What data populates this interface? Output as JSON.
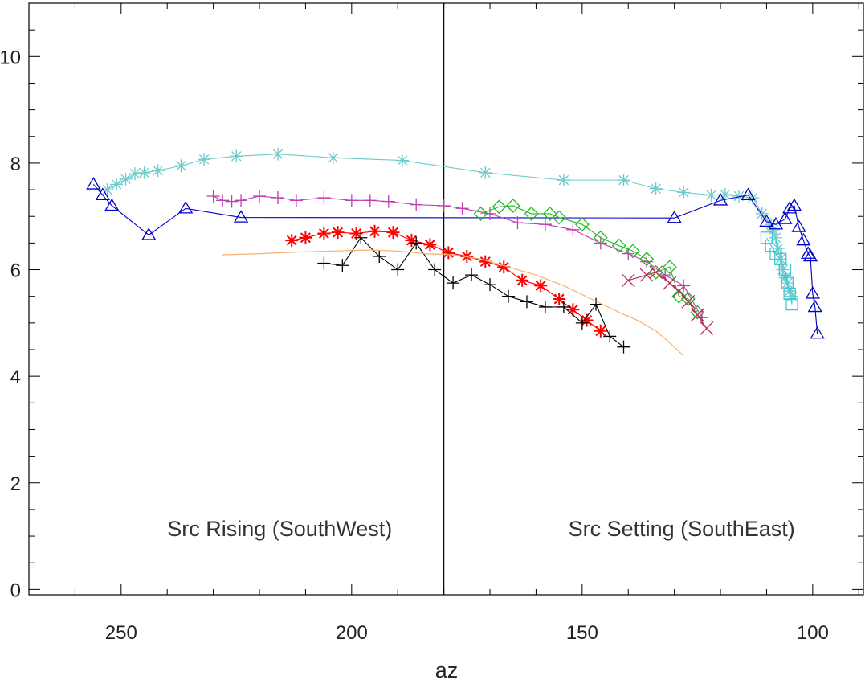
{
  "chart_data": {
    "type": "scatter",
    "xlabel": "az",
    "ylabel": "",
    "xlim": [
      270,
      89
    ],
    "ylim": [
      -0.1,
      11
    ],
    "x_reversed": true,
    "grid": false,
    "x_ticks": [
      250,
      200,
      150,
      100
    ],
    "y_ticks": [
      0,
      2,
      4,
      6,
      8,
      10
    ],
    "vline_x": 180,
    "annotations": [
      {
        "text": "Src Rising (SouthWest)",
        "x": 240,
        "y": 1.15
      },
      {
        "text": "Src Setting (SouthEast)",
        "x": 153,
        "y": 1.15
      }
    ],
    "series": [
      {
        "color": "#6ec9c9",
        "marker": "asterisk",
        "line": true,
        "x": [
          253,
          251,
          249,
          247,
          245,
          242,
          237,
          232,
          225,
          216,
          204,
          189,
          171,
          154,
          141,
          134,
          128,
          122,
          119,
          116,
          113,
          111,
          109,
          108.5,
          108,
          107.5,
          107,
          106.5,
          106,
          105.5,
          105,
          104.5
        ],
        "y": [
          7.5,
          7.6,
          7.7,
          7.8,
          7.82,
          7.86,
          7.95,
          8.07,
          8.13,
          8.17,
          8.1,
          8.05,
          7.82,
          7.68,
          7.68,
          7.52,
          7.45,
          7.4,
          7.41,
          7.38,
          7.35,
          7.05,
          6.85,
          6.75,
          6.6,
          6.4,
          6.2,
          6.0,
          5.85,
          5.75,
          5.6,
          5.5
        ]
      },
      {
        "color": "#0000cc",
        "marker": "triangle",
        "line": true,
        "x": [
          256,
          254,
          252,
          244,
          236,
          224,
          130,
          120,
          114,
          110,
          108,
          106,
          105,
          104,
          103,
          102,
          101,
          100.5,
          100,
          99.5,
          99
        ],
        "y": [
          7.6,
          7.4,
          7.2,
          6.65,
          7.15,
          6.98,
          6.97,
          7.3,
          7.4,
          6.9,
          6.85,
          6.95,
          7.15,
          7.2,
          6.8,
          6.55,
          6.3,
          6.25,
          5.55,
          5.3,
          4.8
        ]
      },
      {
        "color": "#c03cb0",
        "marker": "plus",
        "line": true,
        "x": [
          230,
          228,
          226,
          224,
          220,
          216,
          212,
          206,
          200,
          196,
          192,
          186,
          180,
          176,
          170,
          164,
          158,
          152,
          146,
          140,
          136,
          132,
          128,
          124
        ],
        "y": [
          7.38,
          7.3,
          7.28,
          7.3,
          7.38,
          7.35,
          7.3,
          7.35,
          7.3,
          7.3,
          7.28,
          7.22,
          7.2,
          7.15,
          7.05,
          6.88,
          6.85,
          6.75,
          6.5,
          6.3,
          6.15,
          5.9,
          5.7,
          5.1
        ]
      },
      {
        "color": "#22bb22",
        "marker": "diamond",
        "line": true,
        "x": [
          172,
          168,
          165,
          161,
          157,
          155,
          150,
          146,
          142,
          139,
          136,
          134,
          131,
          129,
          127,
          125
        ],
        "y": [
          7.05,
          7.18,
          7.2,
          7.05,
          7.05,
          6.98,
          6.85,
          6.6,
          6.45,
          6.35,
          6.2,
          5.95,
          6.05,
          5.5,
          5.45,
          5.2
        ]
      },
      {
        "color": "#b0305a",
        "marker": "x",
        "line": true,
        "x": [
          140,
          136,
          134,
          131,
          129,
          127,
          125,
          123
        ],
        "y": [
          5.8,
          5.9,
          5.95,
          5.75,
          5.6,
          5.4,
          5.15,
          4.9
        ]
      },
      {
        "color": "#ff0000",
        "marker": "star",
        "line": true,
        "x": [
          213,
          210,
          206,
          203,
          199,
          195,
          191,
          187,
          183,
          179,
          175,
          171,
          167,
          163,
          159,
          155,
          152,
          149,
          146
        ],
        "y": [
          6.55,
          6.6,
          6.68,
          6.7,
          6.68,
          6.72,
          6.7,
          6.55,
          6.47,
          6.32,
          6.25,
          6.15,
          6.05,
          5.8,
          5.7,
          5.45,
          5.25,
          5.05,
          4.85
        ]
      },
      {
        "color": "#000000",
        "marker": "plus",
        "line": true,
        "x": [
          206,
          202,
          198,
          194,
          190,
          186,
          182,
          178,
          174,
          170,
          166,
          162,
          158,
          154,
          150,
          147,
          144,
          141
        ],
        "y": [
          6.12,
          6.08,
          6.6,
          6.25,
          6.0,
          6.5,
          6.0,
          5.75,
          5.9,
          5.72,
          5.5,
          5.4,
          5.3,
          5.3,
          5.0,
          5.35,
          4.75,
          4.55
        ]
      },
      {
        "color": "#f5b070",
        "marker": "none",
        "line": true,
        "x": [
          228,
          220,
          212,
          204,
          196,
          190,
          184,
          178,
          172,
          166,
          160,
          154,
          148,
          142,
          138,
          134,
          132,
          130,
          128
        ],
        "y": [
          6.28,
          6.3,
          6.33,
          6.35,
          6.37,
          6.35,
          6.3,
          6.28,
          6.2,
          6.05,
          5.9,
          5.7,
          5.45,
          5.2,
          5.05,
          4.85,
          4.7,
          4.55,
          4.38
        ]
      },
      {
        "color": "#3ec8d8",
        "marker": "square",
        "line": true,
        "x": [
          110,
          109,
          108,
          107,
          106,
          105.5,
          105,
          104.5
        ],
        "y": [
          6.6,
          6.45,
          6.3,
          6.2,
          6.0,
          5.75,
          5.55,
          5.35
        ]
      }
    ]
  }
}
